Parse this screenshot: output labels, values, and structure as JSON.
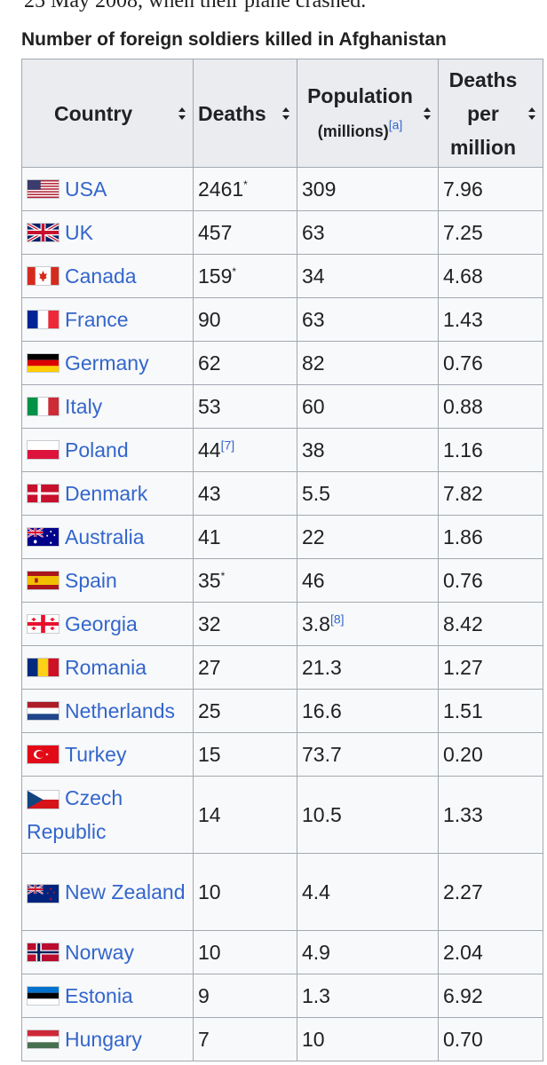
{
  "top_text": "25 May 2008, when their plane crashed.",
  "caption": "Number of foreign soldiers killed in Afghanistan",
  "columns": {
    "country": "Country",
    "deaths": "Deaths",
    "population": "Population",
    "population_unit": "(millions)",
    "population_ref": "[a]",
    "dpm_line1": "Deaths",
    "dpm_line2": "per",
    "dpm_line3": "million"
  },
  "rows": [
    {
      "country": "USA",
      "deaths": "2461",
      "deaths_note": "*",
      "population": "309",
      "population_note": "",
      "dpm": "7.96",
      "flag": "usa-flag-icon"
    },
    {
      "country": "UK",
      "deaths": "457",
      "deaths_note": "",
      "population": "63",
      "population_note": "",
      "dpm": "7.25",
      "flag": "uk-flag-icon"
    },
    {
      "country": "Canada",
      "deaths": "159",
      "deaths_note": "*",
      "population": "34",
      "population_note": "",
      "dpm": "4.68",
      "flag": "canada-flag-icon"
    },
    {
      "country": "France",
      "deaths": "90",
      "deaths_note": "",
      "population": "63",
      "population_note": "",
      "dpm": "1.43",
      "flag": "france-flag-icon"
    },
    {
      "country": "Germany",
      "deaths": "62",
      "deaths_note": "",
      "population": "82",
      "population_note": "",
      "dpm": "0.76",
      "flag": "germany-flag-icon"
    },
    {
      "country": "Italy",
      "deaths": "53",
      "deaths_note": "",
      "population": "60",
      "population_note": "",
      "dpm": "0.88",
      "flag": "italy-flag-icon"
    },
    {
      "country": "Poland",
      "deaths": "44",
      "deaths_note": "[7]",
      "population": "38",
      "population_note": "",
      "dpm": "1.16",
      "flag": "poland-flag-icon"
    },
    {
      "country": "Denmark",
      "deaths": "43",
      "deaths_note": "",
      "population": "5.5",
      "population_note": "",
      "dpm": "7.82",
      "flag": "denmark-flag-icon"
    },
    {
      "country": "Australia",
      "deaths": "41",
      "deaths_note": "",
      "population": "22",
      "population_note": "",
      "dpm": "1.86",
      "flag": "australia-flag-icon"
    },
    {
      "country": "Spain",
      "deaths": "35",
      "deaths_note": "*",
      "population": "46",
      "population_note": "",
      "dpm": "0.76",
      "flag": "spain-flag-icon"
    },
    {
      "country": "Georgia",
      "deaths": "32",
      "deaths_note": "",
      "population": "3.8",
      "population_note": "[8]",
      "dpm": "8.42",
      "flag": "georgia-flag-icon"
    },
    {
      "country": "Romania",
      "deaths": "27",
      "deaths_note": "",
      "population": "21.3",
      "population_note": "",
      "dpm": "1.27",
      "flag": "romania-flag-icon"
    },
    {
      "country": "Netherlands",
      "deaths": "25",
      "deaths_note": "",
      "population": "16.6",
      "population_note": "",
      "dpm": "1.51",
      "flag": "netherlands-flag-icon"
    },
    {
      "country": "Turkey",
      "deaths": "15",
      "deaths_note": "",
      "population": "73.7",
      "population_note": "",
      "dpm": "0.20",
      "flag": "turkey-flag-icon"
    },
    {
      "country": "Czech Republic",
      "deaths": "14",
      "deaths_note": "",
      "population": "10.5",
      "population_note": "",
      "dpm": "1.33",
      "flag": "czech-flag-icon"
    },
    {
      "country": "New Zealand",
      "deaths": "10",
      "deaths_note": "",
      "population": "4.4",
      "population_note": "",
      "dpm": "2.27",
      "flag": "new-zealand-flag-icon"
    },
    {
      "country": "Norway",
      "deaths": "10",
      "deaths_note": "",
      "population": "4.9",
      "population_note": "",
      "dpm": "2.04",
      "flag": "norway-flag-icon"
    },
    {
      "country": "Estonia",
      "deaths": "9",
      "deaths_note": "",
      "population": "1.3",
      "population_note": "",
      "dpm": "6.92",
      "flag": "estonia-flag-icon"
    },
    {
      "country": "Hungary",
      "deaths": "7",
      "deaths_note": "",
      "population": "10",
      "population_note": "",
      "dpm": "0.70",
      "flag": "hungary-flag-icon"
    }
  ],
  "colors": {
    "link": "#3366cc",
    "header_bg": "#eaecf0",
    "cell_bg": "#f8f9fa",
    "border": "#a2a9b1",
    "text": "#202122"
  }
}
